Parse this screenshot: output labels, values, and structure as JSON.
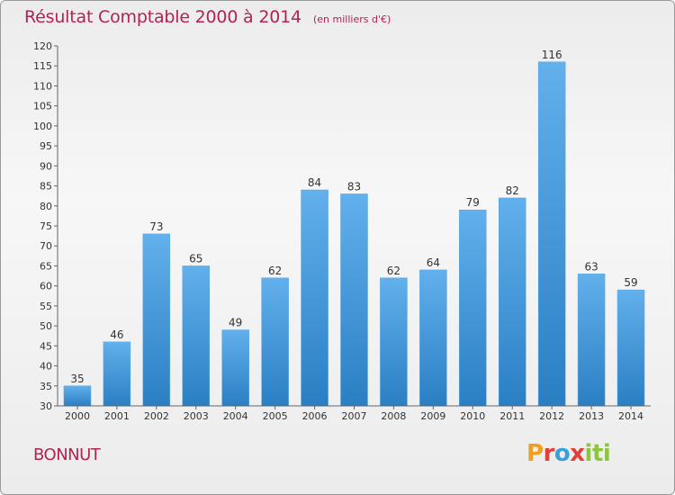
{
  "title": "Résultat Comptable 2000 à 2014",
  "subtitle": "(en milliers d'€)",
  "commune": "BONNUT",
  "logo": {
    "parts": [
      "P",
      "r",
      "o",
      "x",
      "iti"
    ]
  },
  "colors": {
    "bar_light": "#62b0ec",
    "bar_dark": "#2a7fc4",
    "title": "#b0244f"
  },
  "chart_data": {
    "type": "bar",
    "title": "Résultat Comptable 2000 à 2014",
    "subtitle": "(en milliers d'€)",
    "categories": [
      "2000",
      "2001",
      "2002",
      "2003",
      "2004",
      "2005",
      "2006",
      "2007",
      "2008",
      "2009",
      "2010",
      "2011",
      "2012",
      "2013",
      "2014"
    ],
    "values": [
      35,
      46,
      73,
      65,
      49,
      62,
      84,
      83,
      62,
      64,
      79,
      82,
      116,
      63,
      59
    ],
    "ylim": [
      30,
      120
    ],
    "yticks": [
      30,
      35,
      40,
      45,
      50,
      55,
      60,
      65,
      70,
      75,
      80,
      85,
      90,
      95,
      100,
      105,
      110,
      115,
      120
    ],
    "grid": false,
    "legend": "none"
  }
}
